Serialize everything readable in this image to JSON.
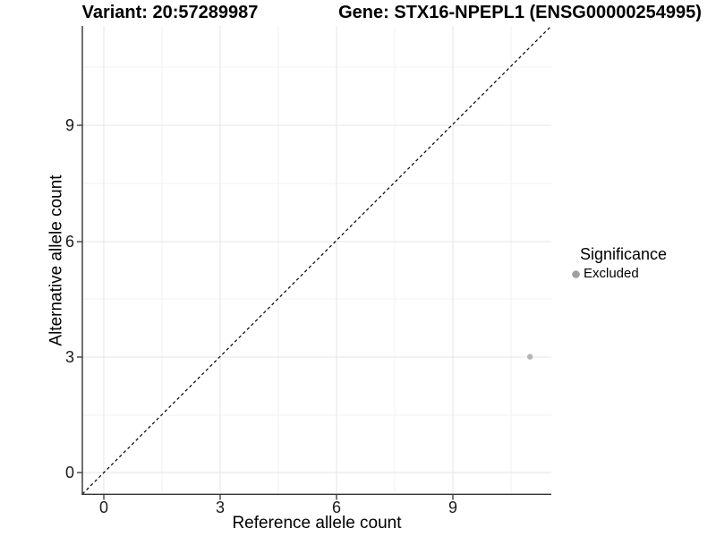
{
  "chart_data": {
    "type": "scatter",
    "titles": {
      "left": "Variant: 20:57289987",
      "right": "Gene: STX16-NPEPL1 (ENSG00000254995)"
    },
    "xlabel": "Reference allele count",
    "ylabel": "Alternative allele count",
    "xlim": [
      -0.55,
      11.55
    ],
    "ylim": [
      -0.55,
      11.55
    ],
    "x_major_ticks": [
      0,
      3,
      6,
      9
    ],
    "y_major_ticks": [
      0,
      3,
      6,
      9
    ],
    "x_tick_labels": [
      "0",
      "3",
      "6",
      "9"
    ],
    "y_tick_labels": [
      "0",
      "3",
      "6",
      "9"
    ],
    "x_minor_gridlines": [
      1.5,
      4.5,
      7.5,
      10.5
    ],
    "y_minor_gridlines": [
      1.5,
      4.5,
      7.5,
      10.5
    ],
    "grid": {
      "shown": true,
      "major_color": "#e6e6e6",
      "minor_color": "#f2f2f2"
    },
    "reference_line": {
      "type": "identity y = x",
      "linetype": "dashed",
      "color": "#000000"
    },
    "series": [
      {
        "name": "Excluded",
        "color": "#b5b5b5",
        "points": [
          {
            "x": 11,
            "y": 3
          }
        ]
      }
    ],
    "legend": {
      "position": "right",
      "title": "Significance",
      "items": [
        {
          "label": "Excluded",
          "color": "#a0a0a0"
        }
      ]
    }
  }
}
